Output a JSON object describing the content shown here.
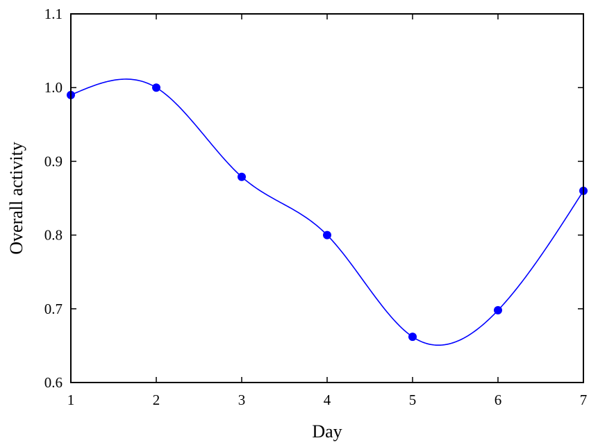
{
  "chart_data": {
    "type": "line",
    "xlabel": "Day",
    "ylabel": "Overall activity",
    "xlim": [
      1,
      7
    ],
    "ylim": [
      0.6,
      1.1
    ],
    "x_ticks": [
      1,
      2,
      3,
      4,
      5,
      6,
      7
    ],
    "x_tick_labels": [
      "1",
      "2",
      "3",
      "4",
      "5",
      "6",
      "7"
    ],
    "y_ticks": [
      0.6,
      0.7,
      0.8,
      0.9,
      1.0,
      1.1
    ],
    "y_tick_labels": [
      "0.6",
      "0.7",
      "0.8",
      "0.9",
      "1.0",
      "1.1"
    ],
    "grid": false,
    "smooth": true,
    "series": [
      {
        "x": [
          1,
          2,
          3,
          4,
          5,
          6,
          7
        ],
        "y": [
          0.99,
          1.0,
          0.879,
          0.8,
          0.662,
          0.698,
          0.86
        ],
        "color": "#0000ff",
        "marker": "circle"
      }
    ]
  }
}
